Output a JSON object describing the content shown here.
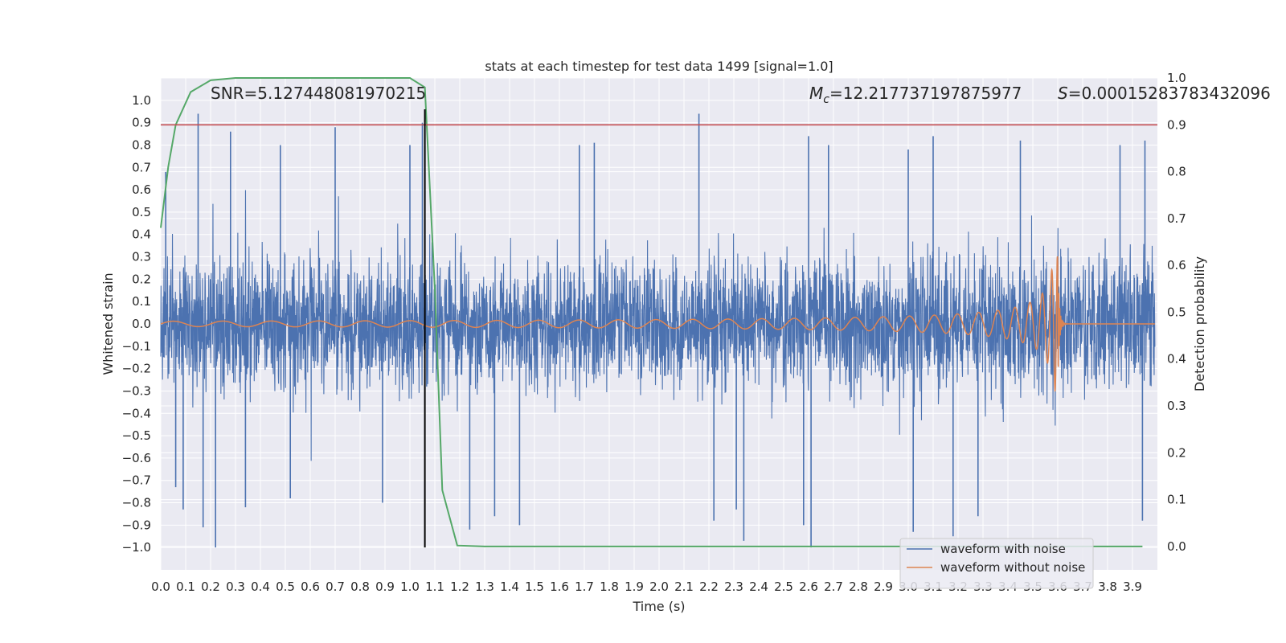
{
  "chart_data": {
    "type": "line",
    "title": "stats at each timestep for test data 1499 [signal=1.0]",
    "xlabel": "Time (s)",
    "ylabel": "Whitened strain",
    "y2label": "Detection probability",
    "xlim": [
      0.0,
      4.0
    ],
    "ylim": [
      -1.1,
      1.1
    ],
    "y2lim": [
      -0.05,
      1.0
    ],
    "x_ticks": [
      "0.0",
      "0.1",
      "0.2",
      "0.3",
      "0.4",
      "0.5",
      "0.6",
      "0.7",
      "0.8",
      "0.9",
      "1.0",
      "1.1",
      "1.2",
      "1.3",
      "1.4",
      "1.5",
      "1.6",
      "1.7",
      "1.8",
      "1.9",
      "2.0",
      "2.1",
      "2.2",
      "2.3",
      "2.4",
      "2.5",
      "2.6",
      "2.7",
      "2.8",
      "2.9",
      "3.0",
      "3.1",
      "3.2",
      "3.3",
      "3.4",
      "3.5",
      "3.6",
      "3.7",
      "3.8",
      "3.9"
    ],
    "y_ticks": [
      "1.0",
      "0.9",
      "0.8",
      "0.7",
      "0.6",
      "0.5",
      "0.4",
      "0.3",
      "0.2",
      "0.1",
      "0.0",
      "−0.1",
      "−0.2",
      "−0.3",
      "−0.4",
      "−0.5",
      "−0.6",
      "−0.7",
      "−0.8",
      "−0.9",
      "−1.0"
    ],
    "y2_ticks": [
      "1.0",
      "0.9",
      "0.8",
      "0.7",
      "0.6",
      "0.5",
      "0.4",
      "0.3",
      "0.2",
      "0.1",
      "0.0"
    ],
    "grid": true,
    "legend_placement": "lower-right",
    "annotations": {
      "snr": "SNR=5.127448081970215",
      "mc_symbol": "M",
      "mc_sub": "c",
      "mc_value": "=12.217737197875977",
      "s_symbol": "S",
      "s_value": "=0.00015283783432096"
    },
    "series": [
      {
        "name": "waveform with noise",
        "axis": "left",
        "color": "#4c72b0",
        "description_values": "dense noise, amplitude about ±0.5 with spikes reaching ±1.0",
        "spikes": [
          [
            0.02,
            0.68
          ],
          [
            0.06,
            -0.73
          ],
          [
            0.09,
            -0.83
          ],
          [
            0.15,
            0.94
          ],
          [
            0.17,
            -0.91
          ],
          [
            0.22,
            -1.0
          ],
          [
            0.28,
            0.86
          ],
          [
            0.34,
            -0.82
          ],
          [
            0.48,
            0.8
          ],
          [
            0.52,
            -0.78
          ],
          [
            0.7,
            0.88
          ],
          [
            0.89,
            -0.8
          ],
          [
            1.0,
            0.8
          ],
          [
            1.05,
            0.9
          ],
          [
            1.24,
            -0.92
          ],
          [
            1.34,
            -0.86
          ],
          [
            1.44,
            -0.9
          ],
          [
            1.68,
            0.8
          ],
          [
            1.74,
            0.81
          ],
          [
            2.16,
            0.94
          ],
          [
            2.22,
            -0.88
          ],
          [
            2.31,
            -0.83
          ],
          [
            2.34,
            -0.97
          ],
          [
            2.58,
            -0.9
          ],
          [
            2.6,
            0.84
          ],
          [
            2.61,
            -1.0
          ],
          [
            2.68,
            0.8
          ],
          [
            3.0,
            0.78
          ],
          [
            3.02,
            -0.93
          ],
          [
            3.1,
            0.84
          ],
          [
            3.18,
            -0.95
          ],
          [
            3.28,
            -0.86
          ],
          [
            3.45,
            0.82
          ],
          [
            3.85,
            0.8
          ],
          [
            3.94,
            -0.88
          ],
          [
            3.95,
            0.82
          ]
        ]
      },
      {
        "name": "waveform without noise",
        "axis": "left",
        "color": "#dd8452",
        "description_values": "chirp with amplitude growing from about 0.01 to about 0.3 at merger near t=3.6 s, then ringdown to zero",
        "chirp_start": 0.0,
        "merger_time": 3.6,
        "amp_start": 0.012,
        "amp_peak": 0.3
      },
      {
        "name": "detection probability",
        "axis": "right",
        "color": "#55a868",
        "x": [
          0.0,
          0.03,
          0.06,
          0.12,
          0.2,
          0.3,
          0.5,
          0.8,
          1.0,
          1.06,
          1.1,
          1.13,
          1.19,
          1.3,
          2.0,
          3.0,
          3.94
        ],
        "y": [
          0.68,
          0.81,
          0.9,
          0.97,
          0.995,
          1.0,
          1.0,
          1.0,
          1.0,
          0.98,
          0.55,
          0.12,
          0.002,
          0.0,
          0.0,
          0.0,
          0.0
        ]
      }
    ],
    "threshold": {
      "axis": "right",
      "value": 0.9,
      "color": "#c44e52"
    },
    "detection_time": {
      "x": 1.06,
      "color": "#000000",
      "y_from": -1.0,
      "y_to": 0.96
    }
  }
}
